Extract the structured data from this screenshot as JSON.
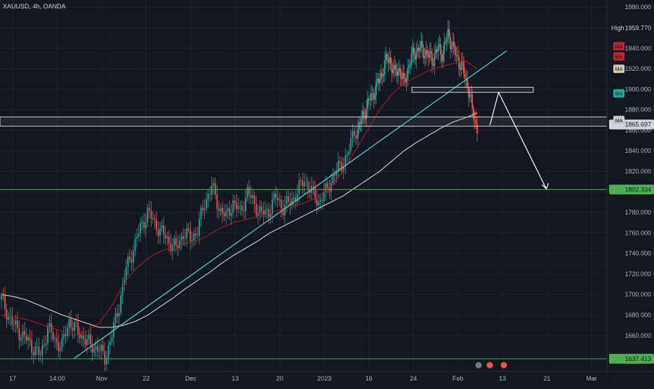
{
  "header": {
    "symbol": "XAUUSD, 4h, OANDA"
  },
  "chart_data": {
    "type": "candlestick",
    "title": "XAUUSD, 4h, OANDA",
    "ylim": [
      1625,
      1987
    ],
    "y_ticks": [
      "1980.000",
      "1960.000",
      "1940.000",
      "1920.000",
      "1900.000",
      "1880.000",
      "1860.000",
      "1840.000",
      "1820.000",
      "1800.000",
      "1780.000",
      "1760.000",
      "1740.000",
      "1720.000",
      "1700.000",
      "1680.000",
      "1660.000",
      "1640.000"
    ],
    "x_ticks": [
      "17",
      "14:00",
      "Nov",
      "22",
      "Dec",
      "13",
      "20",
      "2023",
      "16",
      "24",
      "Feb",
      "13",
      "21",
      "Mar"
    ],
    "x_range": [
      "2022-10-17",
      "2023-03-06"
    ],
    "price_labels": {
      "high_label": "High",
      "high_value": "1959.770",
      "current_value": "1865.697",
      "support_value": "1802.334",
      "low_value": "1637.413"
    },
    "ma_badges": [
      {
        "text": "MA",
        "color": "#b22833"
      },
      {
        "text": "MA",
        "color": "#b22833"
      },
      {
        "text": "MA",
        "color": "#d4c7b0"
      },
      {
        "text": "MA",
        "color": "#26a69a"
      },
      {
        "text": "MA",
        "color": "#c8c8c8"
      }
    ],
    "bar_count": 200,
    "price_path": [
      [
        0,
        1695
      ],
      [
        6,
        1672
      ],
      [
        12,
        1660
      ],
      [
        18,
        1648
      ],
      [
        22,
        1640
      ],
      [
        26,
        1668
      ],
      [
        30,
        1655
      ],
      [
        34,
        1650
      ],
      [
        38,
        1675
      ],
      [
        42,
        1665
      ],
      [
        46,
        1658
      ],
      [
        50,
        1650
      ],
      [
        54,
        1648
      ],
      [
        58,
        1638
      ],
      [
        62,
        1660
      ],
      [
        66,
        1690
      ],
      [
        70,
        1725
      ],
      [
        74,
        1745
      ],
      [
        78,
        1765
      ],
      [
        82,
        1780
      ],
      [
        86,
        1770
      ],
      [
        90,
        1760
      ],
      [
        94,
        1752
      ],
      [
        98,
        1745
      ],
      [
        102,
        1760
      ],
      [
        106,
        1755
      ],
      [
        110,
        1762
      ],
      [
        114,
        1790
      ],
      [
        118,
        1805
      ],
      [
        122,
        1785
      ],
      [
        126,
        1775
      ],
      [
        130,
        1790
      ],
      [
        134,
        1780
      ],
      [
        138,
        1800
      ],
      [
        142,
        1788
      ],
      [
        146,
        1778
      ],
      [
        150,
        1782
      ],
      [
        154,
        1795
      ],
      [
        158,
        1785
      ],
      [
        162,
        1790
      ],
      [
        166,
        1800
      ],
      [
        170,
        1812
      ],
      [
        174,
        1800
      ],
      [
        178,
        1790
      ],
      [
        182,
        1800
      ],
      [
        186,
        1815
      ],
      [
        190,
        1825
      ],
      [
        194,
        1835
      ],
      [
        198,
        1860
      ]
    ],
    "price_path_2": [
      [
        0,
        1860
      ],
      [
        6,
        1880
      ],
      [
        12,
        1895
      ],
      [
        18,
        1910
      ],
      [
        22,
        1925
      ],
      [
        26,
        1930
      ],
      [
        30,
        1915
      ],
      [
        34,
        1920
      ],
      [
        38,
        1905
      ],
      [
        42,
        1925
      ],
      [
        46,
        1935
      ],
      [
        50,
        1940
      ],
      [
        54,
        1938
      ],
      [
        58,
        1932
      ],
      [
        62,
        1930
      ],
      [
        66,
        1940
      ],
      [
        70,
        1935
      ],
      [
        74,
        1955
      ],
      [
        78,
        1940
      ],
      [
        82,
        1930
      ],
      [
        86,
        1920
      ],
      [
        90,
        1905
      ],
      [
        94,
        1880
      ],
      [
        98,
        1862
      ]
    ],
    "ma_lines": [
      {
        "name": "",
        "color": "#b71c1c",
        "values": [
          1680,
          1678,
          1676,
          1672,
          1668,
          1664,
          1660,
          1664,
          1672,
          1688,
          1710,
          1725,
          1735,
          1742,
          1746,
          1750,
          1752,
          1758,
          1765,
          1770,
          1773,
          1776,
          1780,
          1783,
          1786,
          1790,
          1796,
          1805,
          1820,
          1840,
          1860,
          1880,
          1895,
          1906,
          1912,
          1918,
          1922,
          1925,
          1928,
          1920
        ]
      },
      {
        "name": "",
        "color": "#e8e3dd",
        "values": [
          1700,
          1698,
          1695,
          1690,
          1685,
          1680,
          1676,
          1672,
          1668,
          1668,
          1670,
          1674,
          1680,
          1688,
          1696,
          1705,
          1713,
          1721,
          1730,
          1738,
          1745,
          1752,
          1760,
          1766,
          1772,
          1778,
          1784,
          1790,
          1796,
          1804,
          1812,
          1820,
          1830,
          1840,
          1848,
          1855,
          1862,
          1868,
          1872,
          1877
        ]
      }
    ],
    "trendline": {
      "from": [
        "2022-11-03",
        1637.4
      ],
      "to": [
        "2023-02-06",
        1932
      ]
    },
    "zones": [
      {
        "name": "resistance-box",
        "y0": 1897,
        "y1": 1902,
        "x0": "2023-01-20",
        "x1": "2023-02-17"
      },
      {
        "name": "support-band",
        "y0": 1864,
        "y1": 1873
      }
    ],
    "h_lines": [
      {
        "y": 1802.334
      },
      {
        "y": 1637.413
      }
    ],
    "forecast_path": [
      [
        "2023-02-07",
        1865
      ],
      [
        "2023-02-09",
        1897
      ],
      [
        "2023-02-20",
        1803
      ]
    ]
  }
}
